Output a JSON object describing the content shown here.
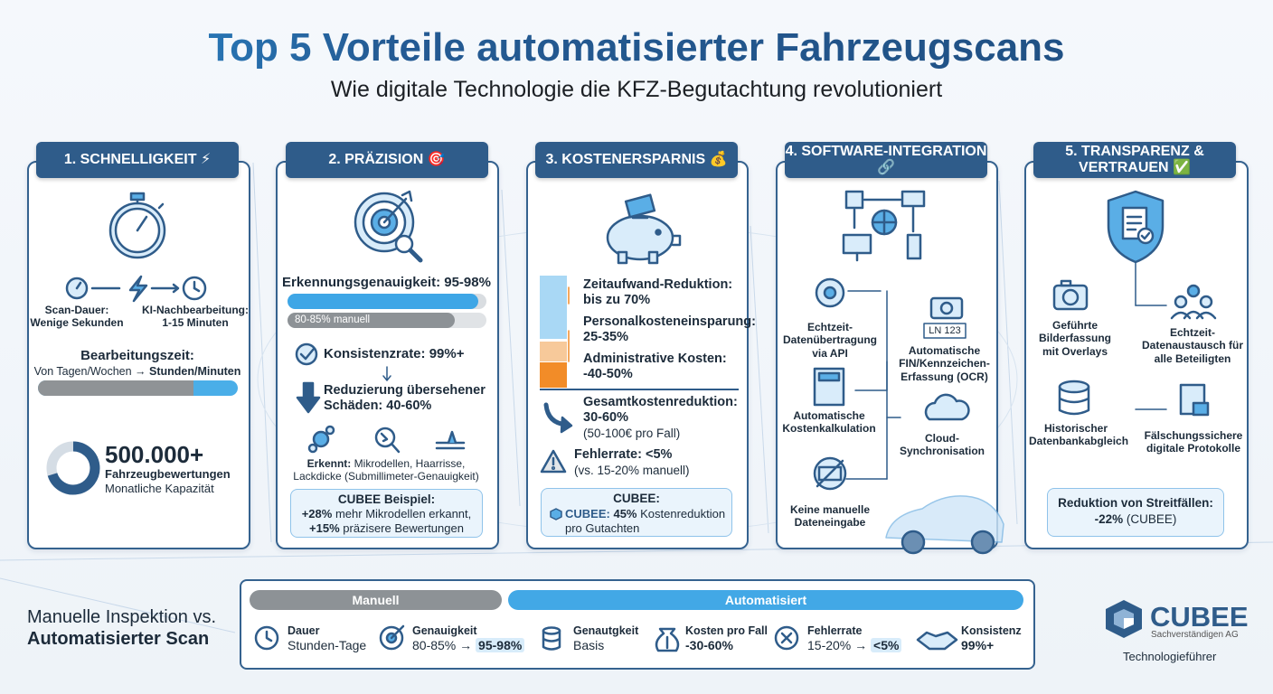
{
  "header": {
    "title": "Top 5 Vorteile automatisierter Fahrzeugscans",
    "subtitle": "Wie digitale Technologie die KFZ-Begutachtung revolutioniert"
  },
  "cards": [
    {
      "title": "1. SCHNELLIGKEIT ⚡",
      "scan_label": "Scan-Dauer:",
      "scan_value": "Wenige Sekunden",
      "ki_label": "KI-Nachbearbeitung:",
      "ki_value": "1-15 Minuten",
      "time_label": "Bearbeitungszeit:",
      "time_from": "Von Tagen/Wochen →",
      "time_to": "Stunden/Minuten",
      "capacity": "500.000+",
      "capacity_label": "Fahrzeugbewertungen",
      "capacity_note": "Monatliche Kapazität"
    },
    {
      "title": "2. PRÄZISION 🎯",
      "accuracy": "Erkennungsgenauigkeit: 95-98%",
      "manual": "80-85% manuell",
      "consistency": "Konsistenzrate: 99%+",
      "reduction": "Reduzierung übersehener Schäden: 40-60%",
      "detects_label": "Erkennt:",
      "detects": "Mikrodellen, Haarrisse, Lackdicke (Submillimeter-Genauigkeit)",
      "example_title": "CUBEE Beispiel:",
      "example_1_value": "+28%",
      "example_1_text": "mehr Mikrodellen erkannt,",
      "example_2_value": "+15%",
      "example_2_text": "präzisere Bewertungen"
    },
    {
      "title": "3. KOSTENERSPARNIS 💰",
      "time_reduction": "Zeitaufwand-Reduktion: bis zu 70%",
      "staff_saving": "Personalkosteneinsparung: 25-35%",
      "admin_costs": "Administrative Kosten: -40-50%",
      "total_reduction": "Gesamtkostenreduktion: 30-60%",
      "total_note": "(50-100€ pro Fall)",
      "error_rate": "Fehlerrate: <5%",
      "error_note": "(vs. 15-20% manuell)",
      "example_title": "CUBEE:",
      "example_brand": "CUBEE:",
      "example_value": "45%",
      "example_text": "Kostenreduktion pro Gutachten"
    },
    {
      "title": "4. SOFTWARE-INTEGRATION 🔗",
      "api": "Echtzeit-Datenübertragung via API",
      "plate": "LN 123",
      "ocr": "Automatische FIN/Kennzeichen-Erfassung (OCR)",
      "calc": "Automatische Kostenkalkulation",
      "cloud": "Cloud-Synchronisation",
      "no_manual": "Keine manuelle Dateneingabe"
    },
    {
      "title": "5. TRANSPARENZ & VERTRAUEN ✅",
      "guided": "Geführte Bilderfassung mit Overlays",
      "exchange": "Echtzeit-Datenaustausch für alle Beteiligten",
      "history": "Historischer Datenbankabgleich",
      "protocols": "Fälschungssichere digitale Protokolle",
      "dispute_label": "Reduktion von Streitfällen:",
      "dispute_value": "-22%",
      "dispute_note": "(CUBEE)"
    }
  ],
  "comparison": {
    "title_1": "Manuelle Inspektion vs.",
    "title_2": "Automatisierter Scan",
    "manual_header": "Manuell",
    "auto_header": "Automatisiert",
    "items": [
      {
        "label": "Dauer",
        "value": "Stunden-Tage"
      },
      {
        "label": "Genauigkeit",
        "from": "80-85% →",
        "to": "95-98%"
      },
      {
        "label": "Genautgkeit",
        "value": "Basis"
      },
      {
        "label": "Kosten pro Fall",
        "value": "-30-60%"
      },
      {
        "label": "Fehlerrate",
        "from": "15-20% →",
        "to": "<5%"
      },
      {
        "label": "Konsistenz",
        "value": "99%+"
      }
    ]
  },
  "logo": {
    "name": "CUBEE",
    "subtitle": "Sachverständigen AG",
    "tagline": "Technologieführer"
  }
}
